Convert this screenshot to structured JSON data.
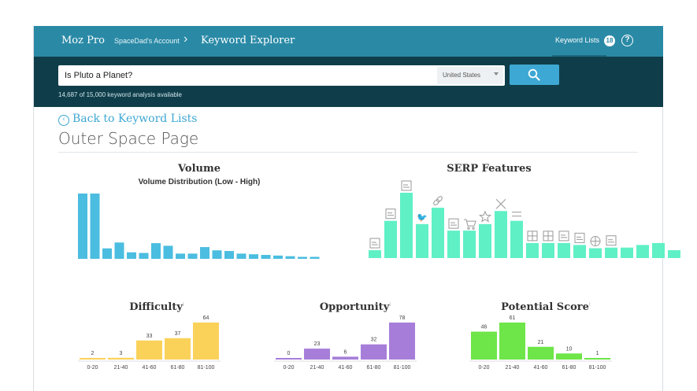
{
  "header": {
    "brand": "Moz Pro",
    "account": "SpaceDad's Account",
    "breadcrumb_separator": "›",
    "current_page": "Keyword Explorer",
    "keyword_lists_label": "Keyword Lists",
    "keyword_lists_count": "18",
    "help": "?"
  },
  "search": {
    "query": "Is Pluto a Planet?",
    "country": "United States",
    "quota": "14,687 of 15,000 keyword analysis available"
  },
  "nav": {
    "back_label": "Back to Keyword Lists",
    "back_icon": "chevron-left-icon"
  },
  "page": {
    "title": "Outer Space Page"
  },
  "colors": {
    "header": "#2a8aa6",
    "search_band": "#0f3e4a",
    "accent": "#3ea8d4",
    "volume": "#4bbde0",
    "serp": "#5ff0c6",
    "difficulty": "#fad25a",
    "opportunity": "#a67ed9",
    "potential": "#6ee548"
  },
  "chart_data": [
    {
      "type": "bar",
      "title": "Volume",
      "subtitle": "Volume Distribution (Low - High)",
      "values": [
        100,
        100,
        16,
        25,
        10,
        9,
        24,
        20,
        8,
        8,
        18,
        13,
        12,
        8,
        7,
        6,
        5,
        4,
        3,
        3
      ]
    },
    {
      "type": "bar",
      "title": "SERP Features",
      "icons": [
        "image-icon",
        "image-icon",
        "news-icon",
        "twitter-icon",
        "link-icon",
        "document-icon",
        "shopping-cart-icon",
        "star-icon",
        "close-icon",
        "arrows-icon",
        "grid-icon",
        "grid-icon",
        "table-icon",
        "image-icon",
        "globe-icon",
        "document-icon",
        "blank",
        "blank",
        "blank",
        "blank"
      ],
      "values": [
        12,
        57,
        100,
        52,
        77,
        42,
        42,
        52,
        72,
        57,
        23,
        23,
        23,
        20,
        15,
        16,
        16,
        20,
        23,
        12
      ]
    },
    {
      "type": "bar",
      "title": "Difficulty",
      "categories": [
        "0-20",
        "21-40",
        "41-60",
        "61-80",
        "81-100"
      ],
      "values": [
        2,
        3,
        33,
        37,
        64
      ]
    },
    {
      "type": "bar",
      "title": "Opportunity",
      "categories": [
        "0-20",
        "21-40",
        "41-60",
        "61-80",
        "81-100"
      ],
      "values": [
        0,
        23,
        6,
        32,
        78
      ]
    },
    {
      "type": "bar",
      "title": "Potential Score",
      "categories": [
        "0-20",
        "21-40",
        "41-60",
        "61-80",
        "81-100"
      ],
      "values": [
        46,
        61,
        21,
        10,
        1
      ]
    }
  ]
}
